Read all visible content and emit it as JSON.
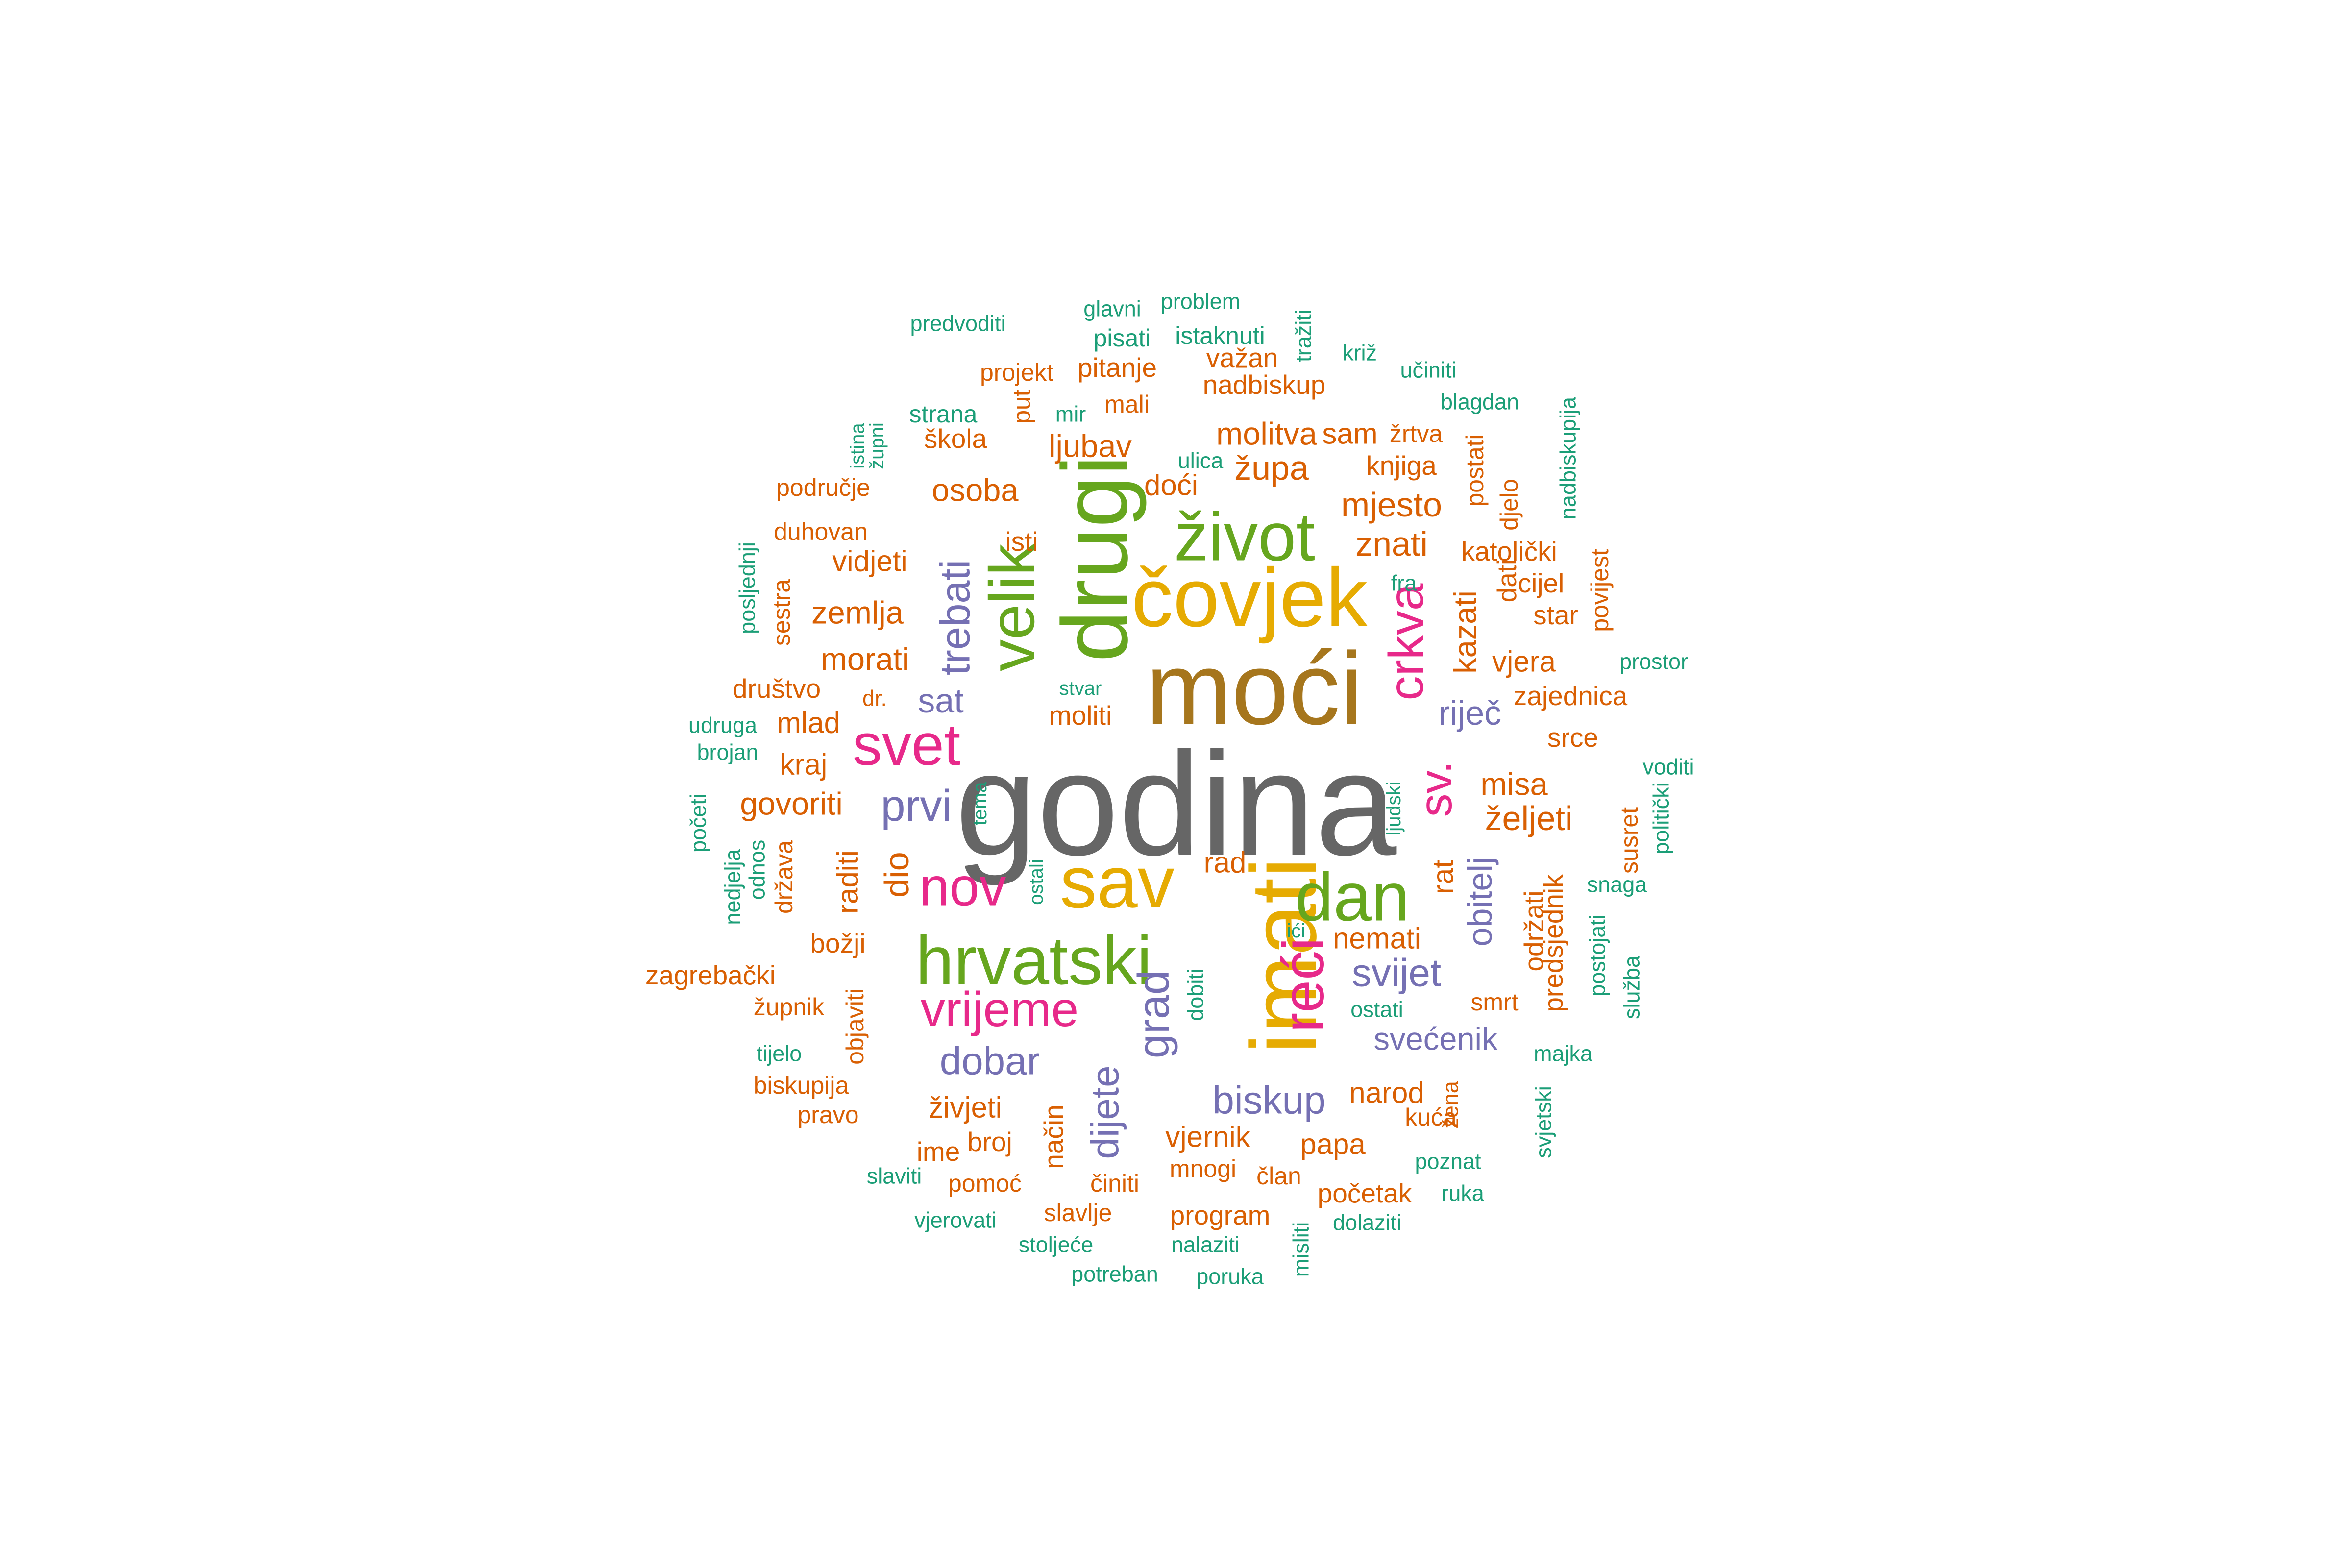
{
  "palette": {
    "gray": "#666666",
    "olive": "#a6761d",
    "gold": "#e6ab02",
    "green": "#66a61e",
    "magenta": "#e7298a",
    "purple": "#7570b3",
    "orange": "#d95f02",
    "teal": "#1b9e77"
  },
  "words": [
    {
      "text": "godina",
      "color": "gray"
    },
    {
      "text": "moći",
      "color": "olive"
    },
    {
      "text": "čovjek",
      "color": "gold"
    },
    {
      "text": "drugi",
      "color": "green"
    },
    {
      "text": "život",
      "color": "green"
    },
    {
      "text": "imati",
      "color": "gold"
    },
    {
      "text": "sav",
      "color": "gold"
    },
    {
      "text": "hrvatski",
      "color": "green"
    },
    {
      "text": "dan",
      "color": "green"
    },
    {
      "text": "velik",
      "color": "green"
    },
    {
      "text": "svet",
      "color": "magenta"
    },
    {
      "text": "reći",
      "color": "magenta"
    },
    {
      "text": "nov",
      "color": "magenta"
    },
    {
      "text": "vrijeme",
      "color": "magenta"
    },
    {
      "text": "crkva",
      "color": "magenta"
    },
    {
      "text": "sv.",
      "color": "magenta"
    },
    {
      "text": "trebati",
      "color": "purple"
    },
    {
      "text": "prvi",
      "color": "purple"
    },
    {
      "text": "grad",
      "color": "purple"
    },
    {
      "text": "biskup",
      "color": "purple"
    },
    {
      "text": "dobar",
      "color": "purple"
    },
    {
      "text": "dijete",
      "color": "purple"
    },
    {
      "text": "svijet",
      "color": "purple"
    },
    {
      "text": "obitelj",
      "color": "purple"
    },
    {
      "text": "svećenik",
      "color": "purple"
    },
    {
      "text": "sat",
      "color": "purple"
    },
    {
      "text": "riječ",
      "color": "purple"
    },
    {
      "text": "mjesto",
      "color": "orange"
    },
    {
      "text": "molitva",
      "color": "orange"
    },
    {
      "text": "znati",
      "color": "orange"
    },
    {
      "text": "župa",
      "color": "orange"
    },
    {
      "text": "ljubav",
      "color": "orange"
    },
    {
      "text": "osoba",
      "color": "orange"
    },
    {
      "text": "doći",
      "color": "orange"
    },
    {
      "text": "zemlja",
      "color": "orange"
    },
    {
      "text": "morati",
      "color": "orange"
    },
    {
      "text": "vidjeti",
      "color": "orange"
    },
    {
      "text": "kazati",
      "color": "orange"
    },
    {
      "text": "vjera",
      "color": "orange"
    },
    {
      "text": "zajednica",
      "color": "orange"
    },
    {
      "text": "misa",
      "color": "orange"
    },
    {
      "text": "željeti",
      "color": "orange"
    },
    {
      "text": "govoriti",
      "color": "orange"
    },
    {
      "text": "mlad",
      "color": "orange"
    },
    {
      "text": "kraj",
      "color": "orange"
    },
    {
      "text": "dio",
      "color": "orange"
    },
    {
      "text": "raditi",
      "color": "orange"
    },
    {
      "text": "rad",
      "color": "orange"
    },
    {
      "text": "rat",
      "color": "orange"
    },
    {
      "text": "nemati",
      "color": "orange"
    },
    {
      "text": "narod",
      "color": "orange"
    },
    {
      "text": "vjernik",
      "color": "orange"
    },
    {
      "text": "papa",
      "color": "orange"
    },
    {
      "text": "živjeti",
      "color": "orange"
    },
    {
      "text": "način",
      "color": "orange"
    },
    {
      "text": "moliti",
      "color": "orange"
    },
    {
      "text": "isti",
      "color": "orange"
    },
    {
      "text": "katolički",
      "color": "orange"
    },
    {
      "text": "dati",
      "color": "orange"
    },
    {
      "text": "cijel",
      "color": "orange"
    },
    {
      "text": "star",
      "color": "orange"
    },
    {
      "text": "srce",
      "color": "orange"
    },
    {
      "text": "knjiga",
      "color": "orange"
    },
    {
      "text": "sam",
      "color": "orange"
    },
    {
      "text": "žrtva",
      "color": "orange"
    },
    {
      "text": "postati",
      "color": "orange"
    },
    {
      "text": "djelo",
      "color": "orange"
    },
    {
      "text": "nadbiskup",
      "color": "orange"
    },
    {
      "text": "pitanje",
      "color": "orange"
    },
    {
      "text": "važan",
      "color": "orange"
    },
    {
      "text": "projekt",
      "color": "orange"
    },
    {
      "text": "mali",
      "color": "orange"
    },
    {
      "text": "put",
      "color": "orange"
    },
    {
      "text": "škola",
      "color": "orange"
    },
    {
      "text": "područje",
      "color": "orange"
    },
    {
      "text": "duhovan",
      "color": "orange"
    },
    {
      "text": "društvo",
      "color": "orange"
    },
    {
      "text": "dr.",
      "color": "orange"
    },
    {
      "text": "sestra",
      "color": "orange"
    },
    {
      "text": "država",
      "color": "orange"
    },
    {
      "text": "božji",
      "color": "orange"
    },
    {
      "text": "zagrebački",
      "color": "orange"
    },
    {
      "text": "župnik",
      "color": "orange"
    },
    {
      "text": "objaviti",
      "color": "orange"
    },
    {
      "text": "biskupija",
      "color": "orange"
    },
    {
      "text": "pravo",
      "color": "orange"
    },
    {
      "text": "broj",
      "color": "orange"
    },
    {
      "text": "ime",
      "color": "orange"
    },
    {
      "text": "činiti",
      "color": "orange"
    },
    {
      "text": "mnogi",
      "color": "orange"
    },
    {
      "text": "član",
      "color": "orange"
    },
    {
      "text": "slavlje",
      "color": "orange"
    },
    {
      "text": "program",
      "color": "orange"
    },
    {
      "text": "početak",
      "color": "orange"
    },
    {
      "text": "kuća",
      "color": "orange"
    },
    {
      "text": "smrt",
      "color": "orange"
    },
    {
      "text": "održati",
      "color": "orange"
    },
    {
      "text": "predsjednik",
      "color": "orange"
    },
    {
      "text": "susret",
      "color": "orange"
    },
    {
      "text": "povijest",
      "color": "orange"
    },
    {
      "text": "žena",
      "color": "orange"
    },
    {
      "text": "pomoć",
      "color": "orange"
    },
    {
      "text": "predvoditi",
      "color": "teal"
    },
    {
      "text": "glavni",
      "color": "teal"
    },
    {
      "text": "problem",
      "color": "teal"
    },
    {
      "text": "pisati",
      "color": "teal"
    },
    {
      "text": "istaknuti",
      "color": "teal"
    },
    {
      "text": "tražiti",
      "color": "teal"
    },
    {
      "text": "križ",
      "color": "teal"
    },
    {
      "text": "učiniti",
      "color": "teal"
    },
    {
      "text": "blagdan",
      "color": "teal"
    },
    {
      "text": "nadbiskupija",
      "color": "teal"
    },
    {
      "text": "strana",
      "color": "teal"
    },
    {
      "text": "mir",
      "color": "teal"
    },
    {
      "text": "ulica",
      "color": "teal"
    },
    {
      "text": "istina",
      "color": "teal"
    },
    {
      "text": "župni",
      "color": "teal"
    },
    {
      "text": "fra",
      "color": "teal"
    },
    {
      "text": "posljednji",
      "color": "teal"
    },
    {
      "text": "prostor",
      "color": "teal"
    },
    {
      "text": "udruga",
      "color": "teal"
    },
    {
      "text": "brojan",
      "color": "teal"
    },
    {
      "text": "stvar",
      "color": "teal"
    },
    {
      "text": "početi",
      "color": "teal"
    },
    {
      "text": "tema",
      "color": "teal"
    },
    {
      "text": "ljudski",
      "color": "teal"
    },
    {
      "text": "voditi",
      "color": "teal"
    },
    {
      "text": "politički",
      "color": "teal"
    },
    {
      "text": "nedjelja",
      "color": "teal"
    },
    {
      "text": "odnos",
      "color": "teal"
    },
    {
      "text": "ostali",
      "color": "teal"
    },
    {
      "text": "snaga",
      "color": "teal"
    },
    {
      "text": "postojati",
      "color": "teal"
    },
    {
      "text": "ići",
      "color": "teal"
    },
    {
      "text": "dobiti",
      "color": "teal"
    },
    {
      "text": "ostati",
      "color": "teal"
    },
    {
      "text": "služba",
      "color": "teal"
    },
    {
      "text": "tijelo",
      "color": "teal"
    },
    {
      "text": "majka",
      "color": "teal"
    },
    {
      "text": "svjetski",
      "color": "teal"
    },
    {
      "text": "poznat",
      "color": "teal"
    },
    {
      "text": "ruka",
      "color": "teal"
    },
    {
      "text": "slaviti",
      "color": "teal"
    },
    {
      "text": "vjerovati",
      "color": "teal"
    },
    {
      "text": "stoljeće",
      "color": "teal"
    },
    {
      "text": "nalaziti",
      "color": "teal"
    },
    {
      "text": "dolaziti",
      "color": "teal"
    },
    {
      "text": "misliti",
      "color": "teal"
    },
    {
      "text": "potreban",
      "color": "teal"
    },
    {
      "text": "poruka",
      "color": "teal"
    }
  ]
}
